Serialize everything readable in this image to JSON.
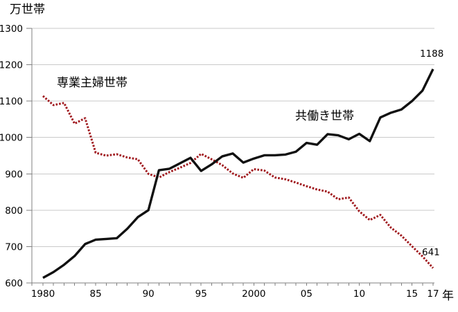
{
  "chart": {
    "y_axis_title": "万世帯",
    "x_axis_unit": "年",
    "labels": {
      "housewife_series": "専業主婦世帯",
      "dual_income_series": "共働き世帯"
    },
    "annotations": {
      "dual_income_end_value": "1188",
      "housewife_end_value": "641"
    },
    "colors": {
      "housewife_line": "#a0191e",
      "dual_income_line": "#111111",
      "gridline": "#c9c9c9",
      "axis": "#7f7f7f",
      "text": "#000000"
    }
  },
  "chart_data": {
    "type": "line",
    "title": "",
    "ylabel": "万世帯",
    "xlabel": "年",
    "ylim": [
      600,
      1300
    ],
    "grid": "horizontal",
    "legend_position": "inline-labels",
    "y_tick_labels": [
      "1300",
      "1200",
      "1100",
      "1000",
      "900",
      "800",
      "700",
      "600"
    ],
    "y_tick_values": [
      1300,
      1200,
      1100,
      1000,
      900,
      800,
      700,
      600
    ],
    "x_tick_labels": [
      {
        "text": "1980",
        "year": 1980
      },
      {
        "text": "85",
        "year": 1985
      },
      {
        "text": "90",
        "year": 1990
      },
      {
        "text": "95",
        "year": 1995
      },
      {
        "text": "2000",
        "year": 2000
      },
      {
        "text": "05",
        "year": 2005
      },
      {
        "text": "10",
        "year": 2010
      },
      {
        "text": "15",
        "year": 2015
      },
      {
        "text": "17",
        "year": 2017
      }
    ],
    "x": [
      1980,
      1981,
      1982,
      1983,
      1984,
      1985,
      1986,
      1987,
      1988,
      1989,
      1990,
      1991,
      1992,
      1993,
      1994,
      1995,
      1996,
      1997,
      1998,
      1999,
      2000,
      2001,
      2002,
      2003,
      2004,
      2005,
      2006,
      2007,
      2008,
      2009,
      2010,
      2011,
      2012,
      2013,
      2014,
      2015,
      2016,
      2017
    ],
    "series": [
      {
        "name": "専業主婦世帯",
        "style": "dotted",
        "color": "#a0191e",
        "values": [
          1114,
          1089,
          1095,
          1038,
          1053,
          958,
          950,
          954,
          945,
          940,
          900,
          890,
          905,
          917,
          930,
          955,
          940,
          924,
          901,
          889,
          913,
          909,
          890,
          885,
          876,
          866,
          857,
          851,
          830,
          835,
          797,
          773,
          787,
          752,
          730,
          701,
          673,
          641
        ]
      },
      {
        "name": "共働き世帯",
        "style": "solid",
        "color": "#111111",
        "values": [
          614,
          630,
          650,
          674,
          707,
          719,
          721,
          723,
          749,
          781,
          800,
          910,
          914,
          929,
          944,
          908,
          926,
          948,
          956,
          931,
          942,
          951,
          951,
          953,
          961,
          985,
          980,
          1009,
          1006,
          995,
          1010,
          990,
          1055,
          1068,
          1077,
          1100,
          1129,
          1188
        ]
      }
    ]
  }
}
